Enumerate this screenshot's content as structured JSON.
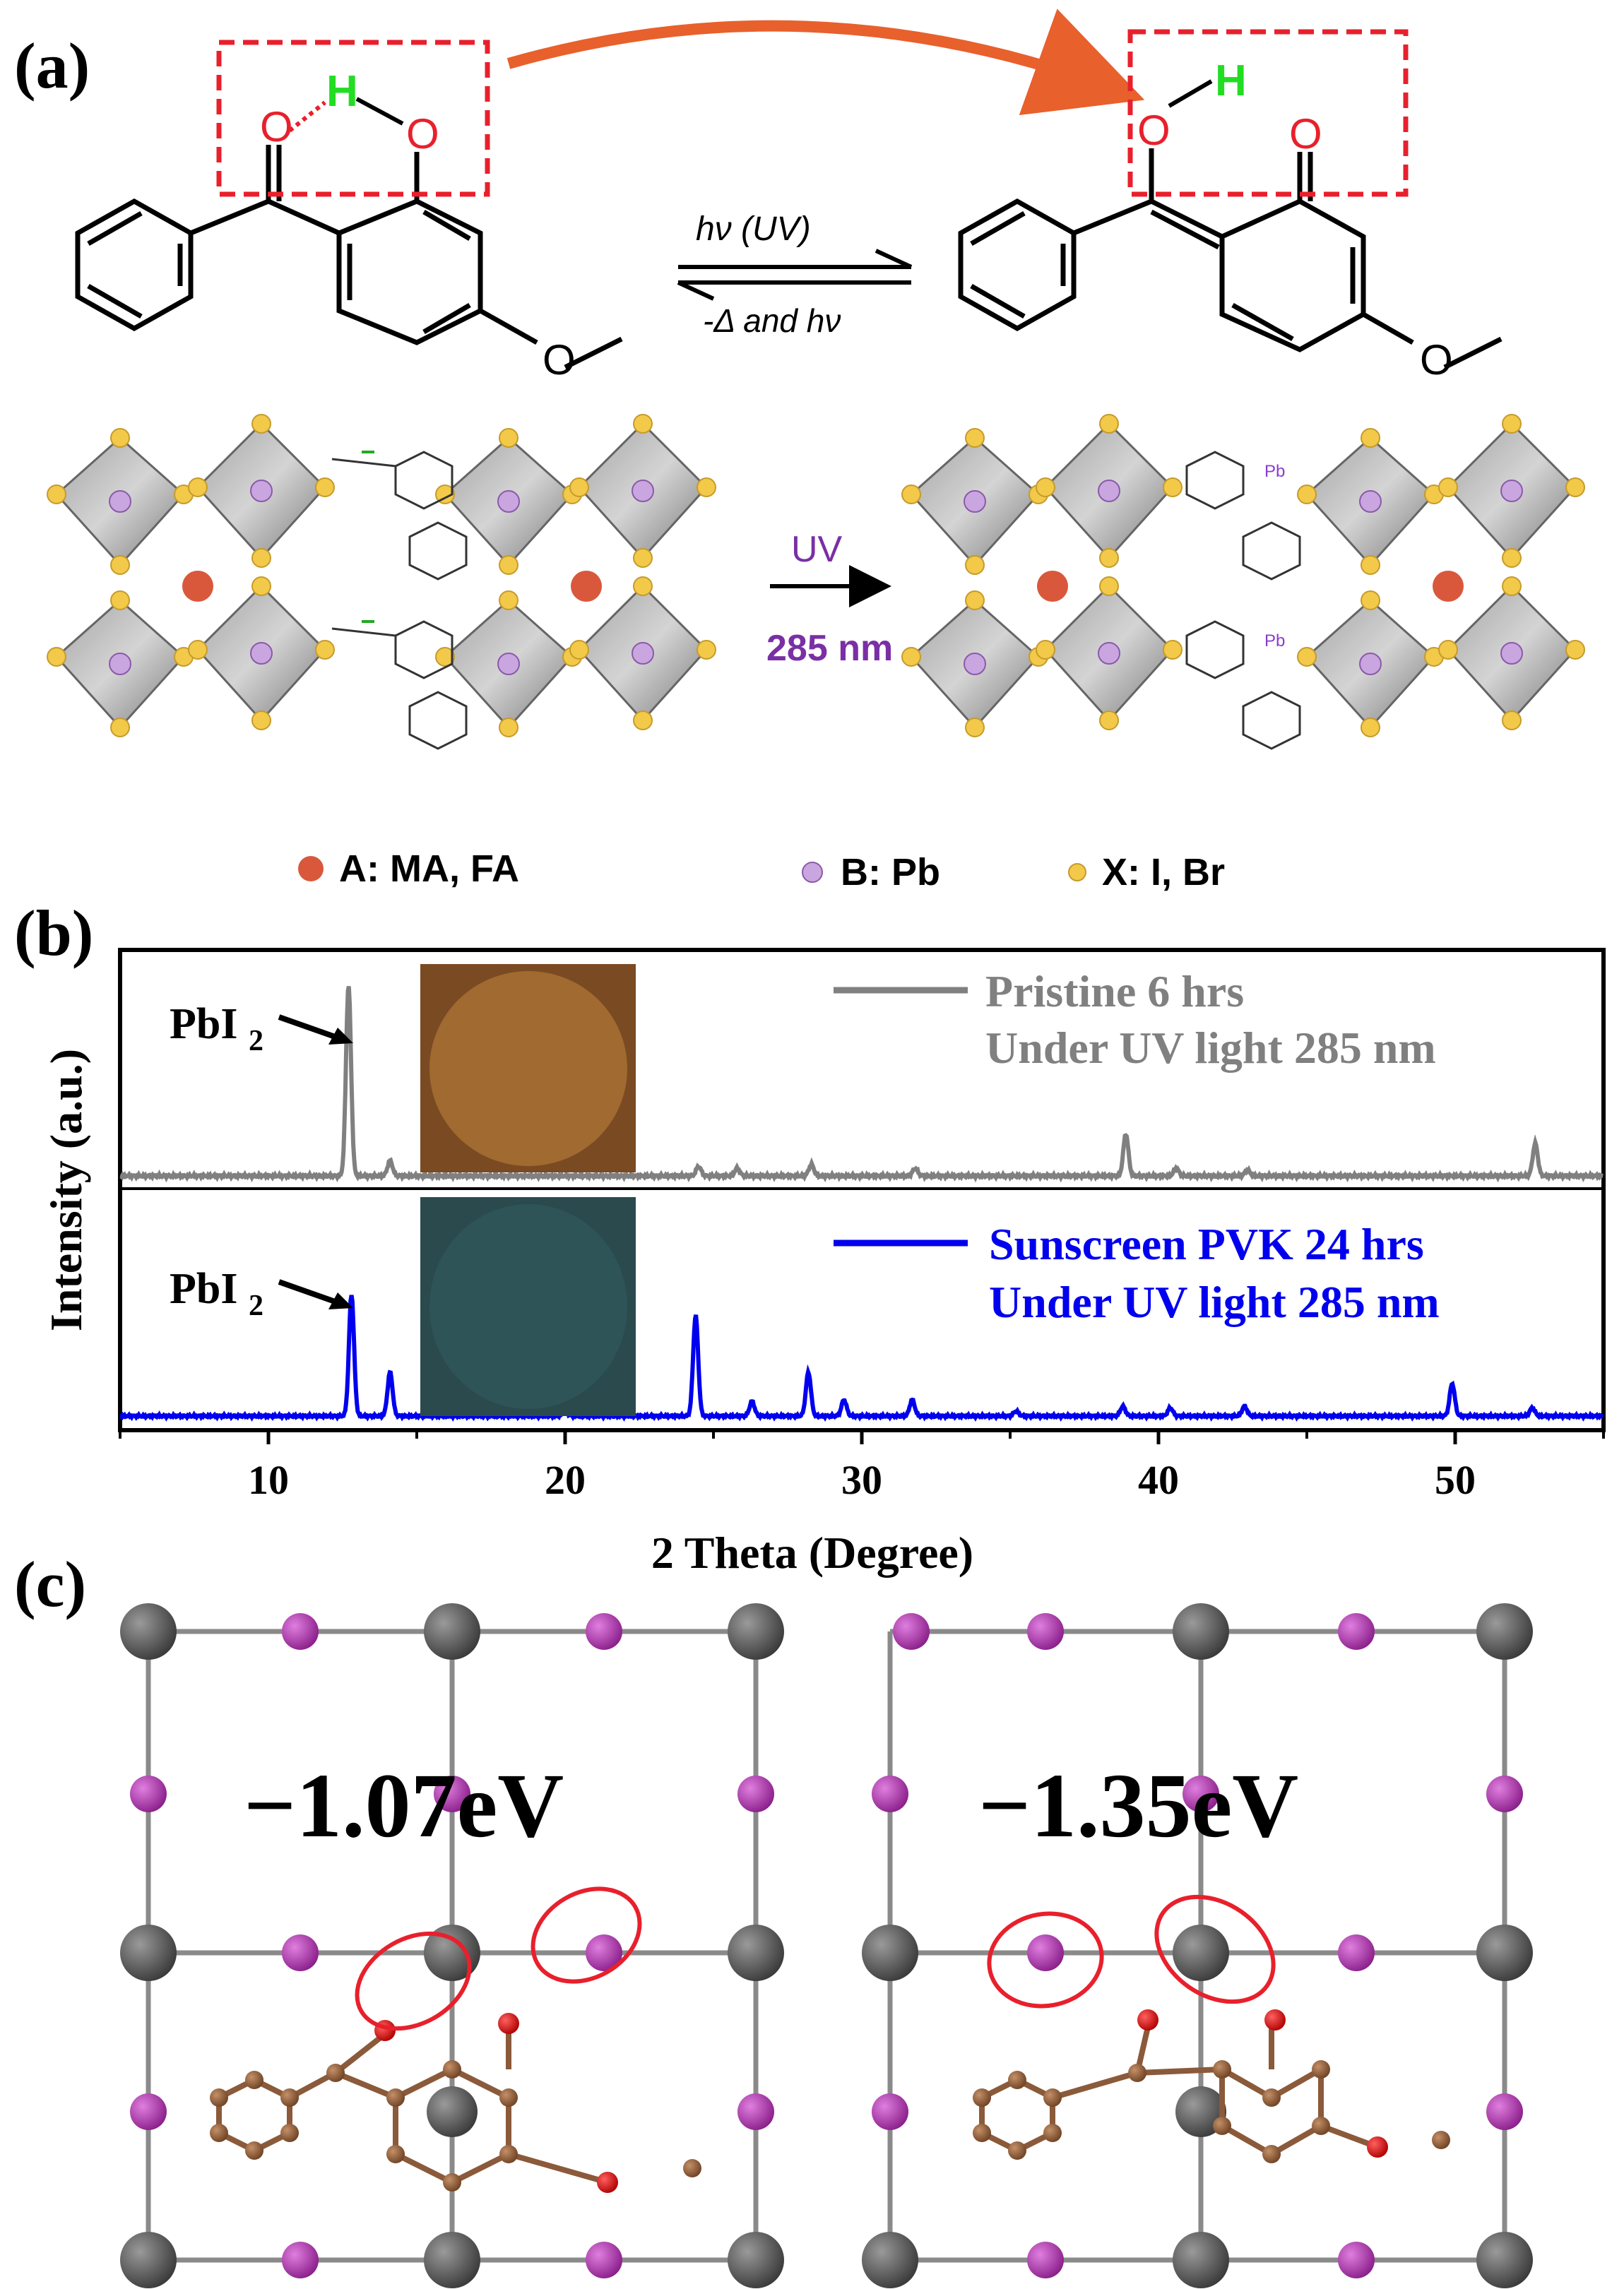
{
  "panels": {
    "a": "(a)",
    "b": "(b)",
    "c": "(c)"
  },
  "panel_a": {
    "atom_O": "O",
    "atom_H": "H",
    "forward_arrow_label": "hν (UV)",
    "reverse_arrow_label": "-Δ and hν",
    "uv_label": "UV",
    "wavelength_label": "285 nm",
    "bound_atom_Pb": "Pb",
    "legend": [
      {
        "label": "A: MA, FA",
        "color": "#d9583b"
      },
      {
        "label": "B: Pb",
        "color": "#c9a6e0"
      },
      {
        "label": "X: I, Br",
        "color": "#f3c94a"
      }
    ]
  },
  "panel_b": {
    "chart_data": {
      "type": "line",
      "xlabel": "2 Theta (Degree)",
      "ylabel": "Intensity (a.u.)",
      "xlim": [
        5,
        55
      ],
      "x_ticks": [
        10,
        20,
        30,
        40,
        50
      ],
      "series": [
        {
          "name": "Pristine 6 hrs",
          "name_line2": "Under UV light 285 nm",
          "color": "#808080",
          "peaks": [
            {
              "x": 12.7,
              "h": 1.0
            },
            {
              "x": 14.1,
              "h": 0.08
            },
            {
              "x": 24.5,
              "h": 0.05
            },
            {
              "x": 25.8,
              "h": 0.04
            },
            {
              "x": 28.3,
              "h": 0.06
            },
            {
              "x": 31.8,
              "h": 0.04
            },
            {
              "x": 38.9,
              "h": 0.22
            },
            {
              "x": 40.6,
              "h": 0.04
            },
            {
              "x": 43.0,
              "h": 0.03
            },
            {
              "x": 52.7,
              "h": 0.17
            }
          ]
        },
        {
          "name": "Sunscreen PVK 24 hrs",
          "name_line2": "Under UV light 285 nm",
          "color": "#0000ee",
          "peaks": [
            {
              "x": 12.8,
              "h": 0.75
            },
            {
              "x": 14.1,
              "h": 0.27
            },
            {
              "x": 20.0,
              "h": 0.03
            },
            {
              "x": 24.4,
              "h": 0.62
            },
            {
              "x": 26.3,
              "h": 0.09
            },
            {
              "x": 28.2,
              "h": 0.27
            },
            {
              "x": 29.4,
              "h": 0.1
            },
            {
              "x": 31.7,
              "h": 0.1
            },
            {
              "x": 35.2,
              "h": 0.03
            },
            {
              "x": 38.8,
              "h": 0.06
            },
            {
              "x": 40.4,
              "h": 0.05
            },
            {
              "x": 42.9,
              "h": 0.06
            },
            {
              "x": 49.9,
              "h": 0.2
            },
            {
              "x": 52.6,
              "h": 0.05
            }
          ]
        }
      ],
      "annotations": [
        "PbI",
        "2"
      ]
    }
  },
  "panel_c": {
    "energies": [
      "−1.07eV",
      "−1.35eV"
    ]
  }
}
